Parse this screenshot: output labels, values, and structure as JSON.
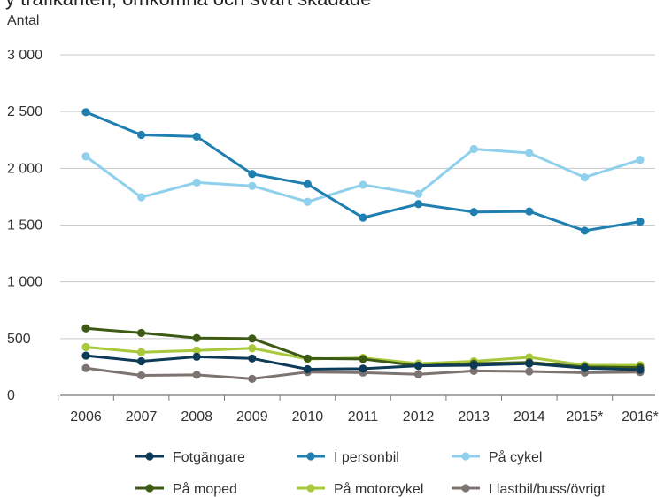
{
  "header": {
    "cut_text": "y trafikanten, omkomna och svårt skadade"
  },
  "chart_data": {
    "type": "line",
    "title": "",
    "ylabel": "Antal",
    "xlabel": "",
    "categories": [
      "2006",
      "2007",
      "2008",
      "2009",
      "2010",
      "2011",
      "2012",
      "2013",
      "2014",
      "2015*",
      "2016*"
    ],
    "ylim": [
      0,
      3000
    ],
    "yticks": [
      0,
      500,
      1000,
      1500,
      2000,
      2500,
      3000
    ],
    "ytick_labels": [
      "0",
      "500",
      "1 000",
      "1 500",
      "2 000",
      "2 500",
      "3 000"
    ],
    "grid": true,
    "legend_position": "bottom",
    "series": [
      {
        "name": "Fotgängare",
        "color": "#0c3a57",
        "values": [
          350,
          300,
          340,
          325,
          230,
          235,
          260,
          265,
          280,
          240,
          225
        ]
      },
      {
        "name": "I personbil",
        "color": "#1f7fb0",
        "values": [
          2495,
          2295,
          2280,
          1950,
          1860,
          1565,
          1685,
          1615,
          1620,
          1450,
          1530
        ]
      },
      {
        "name": "På cykel",
        "color": "#8fd0ec",
        "values": [
          2105,
          1745,
          1875,
          1845,
          1705,
          1855,
          1775,
          2170,
          2135,
          1920,
          2075
        ]
      },
      {
        "name": "På moped",
        "color": "#3c5a14",
        "values": [
          590,
          550,
          505,
          500,
          325,
          320,
          260,
          280,
          290,
          250,
          245
        ]
      },
      {
        "name": "På motorcykel",
        "color": "#a9c93c",
        "values": [
          425,
          380,
          395,
          415,
          320,
          330,
          280,
          300,
          335,
          265,
          265
        ]
      },
      {
        "name": "I lastbil/buss/övrigt",
        "color": "#7d7370",
        "values": [
          240,
          175,
          180,
          145,
          205,
          200,
          185,
          215,
          210,
          200,
          205
        ]
      }
    ]
  }
}
